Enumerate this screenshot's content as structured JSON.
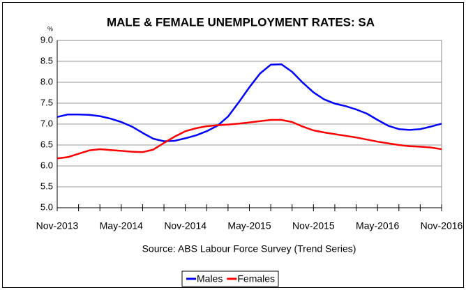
{
  "chart_data": {
    "type": "line",
    "title": "MALE & FEMALE UNEMPLOYMENT RATES: SA",
    "y_label": "%",
    "source": "Source: ABS Labour Force Survey (Trend Series)",
    "categories": [
      "Nov-2013",
      null,
      null,
      null,
      null,
      null,
      "May-2014",
      null,
      null,
      null,
      null,
      null,
      "Nov-2014",
      null,
      null,
      null,
      null,
      null,
      "May-2015",
      null,
      null,
      null,
      null,
      null,
      "Nov-2015",
      null,
      null,
      null,
      null,
      null,
      "May-2016",
      null,
      null,
      null,
      null,
      null,
      "Nov-2016"
    ],
    "series": [
      {
        "name": "Males",
        "color": "#0000ff",
        "values": [
          7.17,
          7.23,
          7.23,
          7.22,
          7.19,
          7.13,
          7.05,
          6.94,
          6.79,
          6.65,
          6.59,
          6.6,
          6.66,
          6.73,
          6.83,
          6.96,
          7.18,
          7.52,
          7.88,
          8.21,
          8.42,
          8.43,
          8.25,
          7.99,
          7.76,
          7.59,
          7.49,
          7.43,
          7.35,
          7.25,
          7.1,
          6.96,
          6.88,
          6.86,
          6.88,
          6.94,
          7.01
        ]
      },
      {
        "name": "Females",
        "color": "#ff0000",
        "values": [
          6.18,
          6.21,
          6.29,
          6.37,
          6.4,
          6.38,
          6.36,
          6.34,
          6.33,
          6.39,
          6.55,
          6.7,
          6.83,
          6.9,
          6.95,
          6.97,
          6.99,
          7.01,
          7.04,
          7.07,
          7.1,
          7.1,
          7.05,
          6.94,
          6.85,
          6.8,
          6.76,
          6.72,
          6.68,
          6.63,
          6.58,
          6.54,
          6.5,
          6.47,
          6.46,
          6.44,
          6.4
        ]
      }
    ],
    "ylim": [
      5,
      9
    ],
    "yticks": [
      {
        "value": 5,
        "label": "5.0"
      },
      5.5,
      {
        "value": 6,
        "label": "6.0"
      },
      6.5,
      {
        "value": 7,
        "label": "7.0"
      },
      7.5,
      {
        "value": 8,
        "label": "8.0"
      },
      8.5,
      {
        "value": 9,
        "label": "9.0"
      }
    ],
    "grid": true,
    "legend": "bottom"
  }
}
